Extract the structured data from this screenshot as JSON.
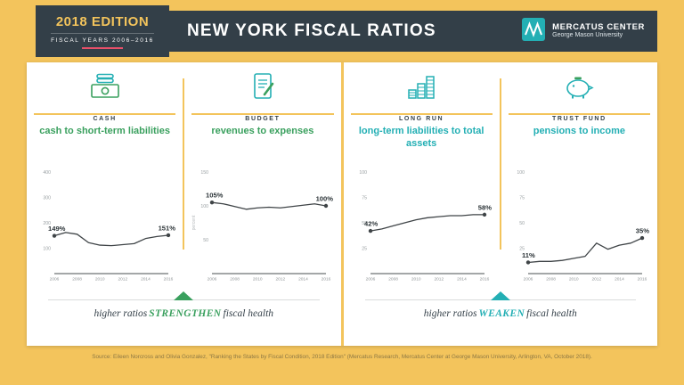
{
  "edition": {
    "title": "2018 EDITION",
    "subtitle": "FISCAL YEARS 2006–2016"
  },
  "header": {
    "title": "NEW YORK FISCAL RATIOS",
    "logo_title": "MERCATUS CENTER",
    "logo_subtitle": "George Mason University"
  },
  "colors": {
    "background_yellow": "#F3C45C",
    "navy": "#333F48",
    "green": "#3AA05E",
    "teal": "#23AFB4",
    "red_accent": "#E8506A"
  },
  "panels": [
    {
      "category": "CASH",
      "icon": "cash-icon",
      "title": "cash to short-term liabilities",
      "accent": "#3AA05E"
    },
    {
      "category": "BUDGET",
      "icon": "budget-icon",
      "title": "revenues to expenses",
      "accent": "#3AA05E"
    },
    {
      "category": "LONG RUN",
      "icon": "long-run-icon",
      "title": "long-term liabilities to total assets",
      "accent": "#23AFB4"
    },
    {
      "category": "TRUST FUND",
      "icon": "trust-fund-icon",
      "title": "pensions to income",
      "accent": "#23AFB4"
    }
  ],
  "chart_data": [
    {
      "type": "line",
      "title": "cash to short-term liabilities",
      "x": [
        2006,
        2007,
        2008,
        2009,
        2010,
        2011,
        2012,
        2013,
        2014,
        2015,
        2016
      ],
      "values": [
        149,
        162,
        155,
        122,
        112,
        110,
        114,
        118,
        138,
        146,
        151
      ],
      "xticks": [
        2006,
        2008,
        2010,
        2012,
        2014,
        2016
      ],
      "yticks": [
        100,
        200,
        300,
        400
      ],
      "ylim": [
        0,
        400
      ],
      "labels": {
        "start": "149%",
        "end": "151%"
      }
    },
    {
      "type": "line",
      "title": "revenues to expenses",
      "ylabel": "percent",
      "x": [
        2006,
        2007,
        2008,
        2009,
        2010,
        2011,
        2012,
        2013,
        2014,
        2015,
        2016
      ],
      "values": [
        105,
        103,
        99,
        95,
        97,
        98,
        97,
        99,
        101,
        103,
        100
      ],
      "xticks": [
        2006,
        2008,
        2010,
        2012,
        2014,
        2016
      ],
      "yticks": [
        50,
        100,
        150
      ],
      "ylim": [
        0,
        150
      ],
      "labels": {
        "start": "105%",
        "end": "100%"
      }
    },
    {
      "type": "line",
      "title": "long-term liabilities to total assets",
      "x": [
        2006,
        2007,
        2008,
        2009,
        2010,
        2011,
        2012,
        2013,
        2014,
        2015,
        2016
      ],
      "values": [
        42,
        44,
        47,
        50,
        53,
        55,
        56,
        57,
        57,
        58,
        58
      ],
      "xticks": [
        2006,
        2008,
        2010,
        2012,
        2014,
        2016
      ],
      "yticks": [
        25,
        50,
        75,
        100
      ],
      "ylim": [
        0,
        100
      ],
      "labels": {
        "start": "42%",
        "end": "58%"
      }
    },
    {
      "type": "line",
      "title": "pensions to income",
      "x": [
        2006,
        2007,
        2008,
        2009,
        2010,
        2011,
        2012,
        2013,
        2014,
        2015,
        2016
      ],
      "values": [
        11,
        12,
        12,
        13,
        15,
        17,
        30,
        24,
        28,
        30,
        35
      ],
      "xticks": [
        2006,
        2008,
        2010,
        2012,
        2014,
        2016
      ],
      "yticks": [
        25,
        50,
        75,
        100
      ],
      "ylim": [
        0,
        100
      ],
      "labels": {
        "start": "11%",
        "end": "35%"
      }
    }
  ],
  "notes": {
    "left": {
      "prefix": "higher ratios",
      "emphasis": "STRENGTHEN",
      "suffix": "fiscal health"
    },
    "right": {
      "prefix": "higher ratios",
      "emphasis": "WEAKEN",
      "suffix": "fiscal health"
    }
  },
  "source": "Source: Eileen Norcross and Olivia Gonzalez, \"Ranking the States by Fiscal Condition, 2018 Edition\" (Mercatus Research, Mercatus Center at George Mason University, Arlington, VA, October 2018)."
}
